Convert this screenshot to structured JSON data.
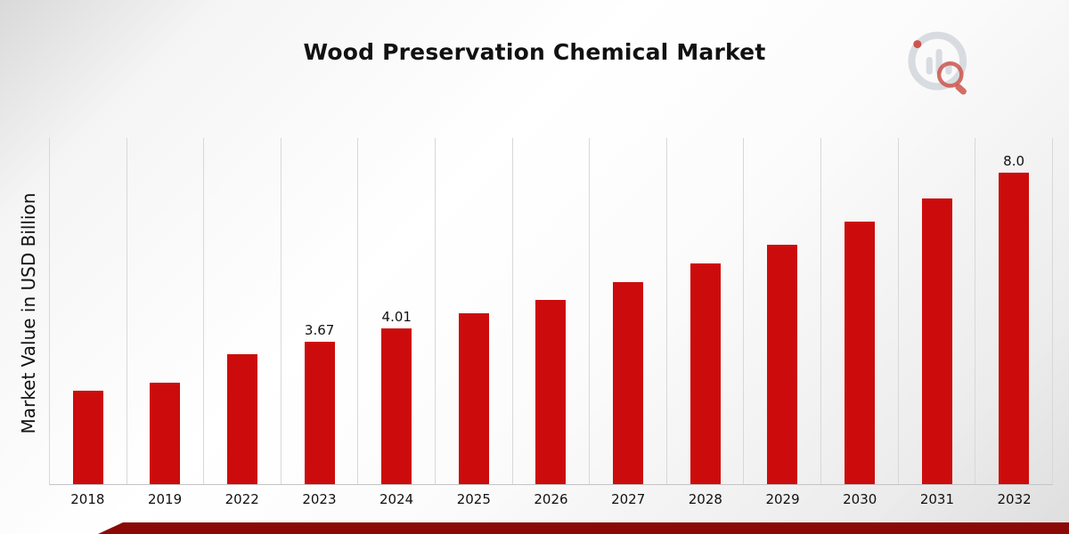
{
  "page": {
    "brand_icon": "bar-chart-magnifier-logo"
  },
  "colors": {
    "bar": "#cc0c0c",
    "bottom_strip": "#8b0a06",
    "gridline": "#d8d8d8",
    "logo_gray": "#d3d7dd",
    "logo_red": "#c3392f"
  },
  "chart_data": {
    "type": "bar",
    "title": "Wood Preservation Chemical Market",
    "ylabel": "Market Value in USD Billion",
    "xlabel": "",
    "categories": [
      "2018",
      "2019",
      "2022",
      "2023",
      "2024",
      "2025",
      "2026",
      "2027",
      "2028",
      "2029",
      "2030",
      "2031",
      "2032"
    ],
    "values": [
      2.4,
      2.61,
      3.35,
      3.67,
      4.01,
      4.4,
      4.74,
      5.2,
      5.68,
      6.16,
      6.74,
      7.35,
      8.0
    ],
    "data_labels": [
      "",
      "",
      "",
      "3.67",
      "4.01",
      "",
      "",
      "",
      "",
      "",
      "",
      "",
      "8.0"
    ],
    "ylim": [
      0,
      8.9
    ],
    "grid": "vertical",
    "legend": "none"
  }
}
